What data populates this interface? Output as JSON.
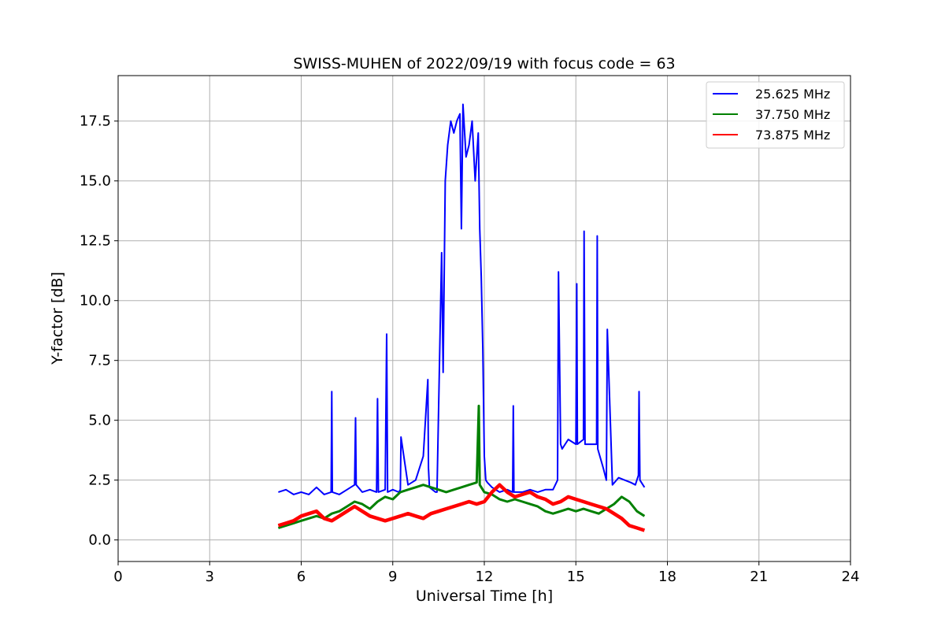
{
  "chart_data": {
    "type": "line",
    "title": "SWISS-MUHEN of 2022/09/19 with focus code = 63",
    "xlabel": "Universal Time [h]",
    "ylabel": "Y-factor [dB]",
    "xlim": [
      0,
      24
    ],
    "ylim": [
      -0.9,
      19.4
    ],
    "xticks": [
      0,
      3,
      6,
      9,
      12,
      15,
      18,
      21,
      24
    ],
    "xtick_labels": [
      "0",
      "3",
      "6",
      "9",
      "12",
      "15",
      "18",
      "21",
      "24"
    ],
    "yticks": [
      0.0,
      2.5,
      5.0,
      7.5,
      10.0,
      12.5,
      15.0,
      17.5
    ],
    "ytick_labels": [
      "0.0",
      "2.5",
      "5.0",
      "7.5",
      "10.0",
      "12.5",
      "15.0",
      "17.5"
    ],
    "grid": true,
    "legend_position": "top-right",
    "series": [
      {
        "name": "25.625 MHz",
        "color": "#0000ff",
        "x": [
          5.25,
          5.5,
          5.75,
          6.0,
          6.25,
          6.5,
          6.75,
          6.98,
          7.0,
          7.02,
          7.25,
          7.5,
          7.75,
          7.78,
          7.8,
          8.0,
          8.25,
          8.47,
          8.5,
          8.53,
          8.75,
          8.8,
          8.83,
          9.0,
          9.2,
          9.25,
          9.27,
          9.5,
          9.75,
          10.0,
          10.15,
          10.17,
          10.2,
          10.4,
          10.45,
          10.6,
          10.65,
          10.72,
          10.8,
          10.9,
          11.0,
          11.1,
          11.2,
          11.25,
          11.3,
          11.4,
          11.5,
          11.6,
          11.7,
          11.8,
          11.85,
          11.9,
          11.95,
          12.0,
          12.05,
          12.1,
          12.25,
          12.5,
          12.75,
          12.93,
          12.95,
          12.97,
          13.25,
          13.5,
          13.75,
          14.0,
          14.25,
          14.4,
          14.43,
          14.5,
          14.55,
          14.75,
          15.0,
          15.03,
          15.05,
          15.25,
          15.27,
          15.3,
          15.5,
          15.68,
          15.7,
          15.72,
          15.9,
          16.0,
          16.03,
          16.2,
          16.4,
          16.6,
          16.8,
          16.95,
          17.05,
          17.07,
          17.1,
          17.25
        ],
        "values": [
          2.0,
          2.1,
          1.9,
          2.0,
          1.9,
          2.2,
          1.9,
          2.0,
          6.2,
          2.0,
          1.9,
          2.1,
          2.3,
          5.1,
          2.3,
          2.0,
          2.1,
          2.0,
          5.9,
          2.0,
          2.1,
          8.6,
          2.0,
          2.1,
          2.0,
          2.1,
          4.3,
          2.3,
          2.5,
          3.5,
          6.7,
          3.0,
          2.2,
          2.0,
          2.0,
          12.0,
          7.0,
          15.0,
          16.5,
          17.5,
          17.0,
          17.5,
          17.8,
          13.0,
          18.2,
          16.0,
          16.5,
          17.5,
          15.0,
          17.0,
          13.0,
          11.0,
          8.0,
          3.5,
          2.5,
          2.4,
          2.2,
          2.0,
          2.1,
          2.0,
          5.6,
          2.0,
          2.0,
          2.1,
          2.0,
          2.1,
          2.1,
          2.5,
          11.2,
          4.0,
          3.8,
          4.2,
          4.0,
          10.7,
          4.0,
          4.2,
          12.9,
          4.0,
          4.0,
          4.0,
          12.7,
          3.8,
          3.0,
          2.5,
          8.8,
          2.3,
          2.6,
          2.5,
          2.4,
          2.3,
          2.7,
          6.2,
          2.5,
          2.2
        ]
      },
      {
        "name": "37.750 MHz",
        "color": "#008000",
        "x": [
          5.25,
          5.5,
          5.75,
          6.0,
          6.25,
          6.5,
          6.75,
          7.0,
          7.25,
          7.5,
          7.75,
          8.0,
          8.25,
          8.5,
          8.75,
          9.0,
          9.25,
          9.5,
          9.75,
          10.0,
          10.25,
          10.5,
          10.75,
          11.0,
          11.25,
          11.5,
          11.75,
          11.82,
          11.85,
          12.0,
          12.25,
          12.5,
          12.75,
          13.0,
          13.25,
          13.5,
          13.75,
          14.0,
          14.25,
          14.5,
          14.75,
          15.0,
          15.25,
          15.5,
          15.75,
          16.0,
          16.25,
          16.5,
          16.75,
          17.0,
          17.25
        ],
        "values": [
          0.5,
          0.6,
          0.7,
          0.8,
          0.9,
          1.0,
          0.9,
          1.1,
          1.2,
          1.4,
          1.6,
          1.5,
          1.3,
          1.6,
          1.8,
          1.7,
          2.0,
          2.1,
          2.2,
          2.3,
          2.2,
          2.1,
          2.0,
          2.1,
          2.2,
          2.3,
          2.4,
          5.6,
          2.3,
          2.0,
          1.9,
          1.7,
          1.6,
          1.7,
          1.6,
          1.5,
          1.4,
          1.2,
          1.1,
          1.2,
          1.3,
          1.2,
          1.3,
          1.2,
          1.1,
          1.3,
          1.5,
          1.8,
          1.6,
          1.2,
          1.0
        ]
      },
      {
        "name": "73.875 MHz",
        "color": "#ff0000",
        "x": [
          5.25,
          5.5,
          5.75,
          6.0,
          6.25,
          6.5,
          6.75,
          7.0,
          7.25,
          7.5,
          7.75,
          8.0,
          8.25,
          8.5,
          8.75,
          9.0,
          9.25,
          9.5,
          9.75,
          10.0,
          10.25,
          10.5,
          10.75,
          11.0,
          11.25,
          11.5,
          11.75,
          12.0,
          12.25,
          12.5,
          12.75,
          13.0,
          13.25,
          13.5,
          13.75,
          14.0,
          14.25,
          14.5,
          14.75,
          15.0,
          15.25,
          15.5,
          15.75,
          16.0,
          16.25,
          16.5,
          16.75,
          17.0,
          17.25
        ],
        "values": [
          0.6,
          0.7,
          0.8,
          1.0,
          1.1,
          1.2,
          0.9,
          0.8,
          1.0,
          1.2,
          1.4,
          1.2,
          1.0,
          0.9,
          0.8,
          0.9,
          1.0,
          1.1,
          1.0,
          0.9,
          1.1,
          1.2,
          1.3,
          1.4,
          1.5,
          1.6,
          1.5,
          1.6,
          2.0,
          2.3,
          2.0,
          1.8,
          1.9,
          2.0,
          1.8,
          1.7,
          1.5,
          1.6,
          1.8,
          1.7,
          1.6,
          1.5,
          1.4,
          1.3,
          1.1,
          0.9,
          0.6,
          0.5,
          0.4
        ]
      }
    ]
  }
}
